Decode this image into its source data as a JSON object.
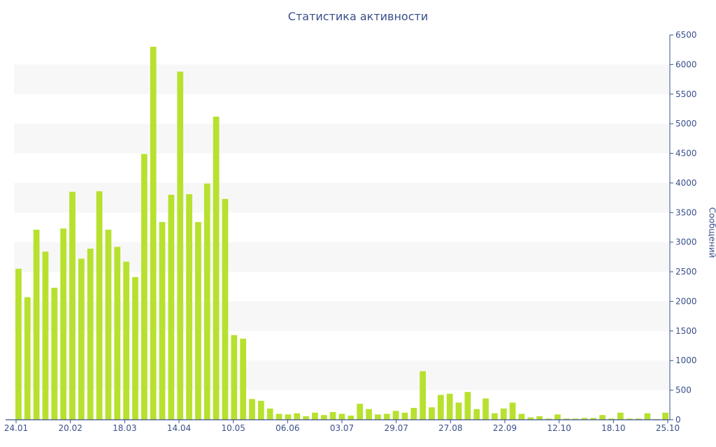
{
  "chart_data": {
    "type": "bar",
    "title": "Статистика активности",
    "ylabel": "Сообщений",
    "ylim": [
      0,
      6500
    ],
    "yticks": [
      0,
      500,
      1000,
      1500,
      2000,
      2500,
      3000,
      3500,
      4000,
      4500,
      5000,
      5500,
      6000,
      6500
    ],
    "y_axis_side": "right",
    "grid": "alternating bands",
    "xtick_labels": [
      "24.01",
      "20.02",
      "18.03",
      "14.04",
      "10.05",
      "06.06",
      "03.07",
      "29.07",
      "27.08",
      "22.09",
      "12.10",
      "18.10",
      "25.10"
    ],
    "values": [
      2550,
      2070,
      3210,
      2840,
      2230,
      3230,
      3850,
      2720,
      2890,
      3860,
      3210,
      2920,
      2670,
      2410,
      4490,
      6300,
      3340,
      3800,
      5880,
      3810,
      3340,
      3990,
      5120,
      3730,
      1430,
      1370,
      350,
      320,
      190,
      100,
      90,
      110,
      60,
      120,
      80,
      130,
      100,
      70,
      270,
      180,
      90,
      100,
      150,
      120,
      200,
      820,
      210,
      420,
      440,
      290,
      470,
      180,
      360,
      110,
      190,
      290,
      100,
      40,
      60,
      20,
      90,
      20,
      20,
      30,
      30,
      80,
      20,
      120,
      20,
      20,
      110,
      10,
      120
    ],
    "bar_color": "#b7e12e",
    "band_color": "#f7f7f7",
    "axis_color": "#3a4f8c"
  }
}
